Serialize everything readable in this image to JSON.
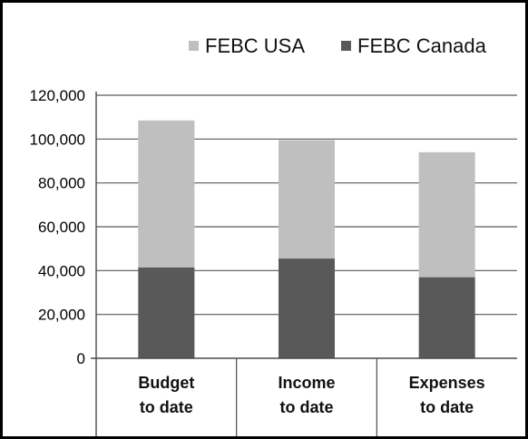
{
  "chart_data": {
    "type": "bar",
    "stacked": true,
    "title": "",
    "xlabel": "",
    "ylabel": "",
    "categories": [
      [
        "Budget",
        "to date"
      ],
      [
        "Income",
        "to date"
      ],
      [
        "Expenses",
        "to date"
      ]
    ],
    "series": [
      {
        "name": "FEBC Canada",
        "values": [
          41500,
          45500,
          37000
        ],
        "color": "#595959"
      },
      {
        "name": "FEBC USA",
        "values": [
          67000,
          54000,
          57000
        ],
        "color": "#bfbfbf"
      }
    ],
    "legend_order": [
      1,
      0
    ],
    "legend_position": "top",
    "ylim": [
      0,
      120000
    ],
    "yticks": [
      0,
      20000,
      40000,
      60000,
      80000,
      100000,
      120000
    ],
    "ytick_labels": [
      "0",
      "20,000",
      "40,000",
      "60,000",
      "80,000",
      "100,000",
      "120,000"
    ],
    "grid": true
  }
}
